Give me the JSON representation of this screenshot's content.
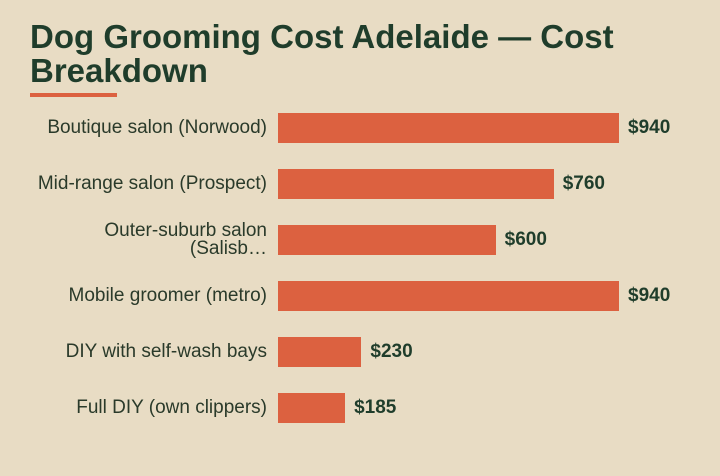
{
  "chart_data": {
    "type": "bar",
    "orientation": "horizontal",
    "title": "Dog Grooming Cost Adelaide — Cost Breakdown",
    "categories": [
      "Boutique salon (Norwood)",
      "Mid-range salon (Prospect)",
      "Outer-suburb salon (Salisb…",
      "Mobile groomer (metro)",
      "DIY with self-wash bays",
      "Full DIY (own clippers)"
    ],
    "values": [
      940,
      760,
      600,
      940,
      230,
      185
    ],
    "value_labels": [
      "$940",
      "$760",
      "$600",
      "$940",
      "$230",
      "$185"
    ],
    "color": "#dc6140"
  }
}
